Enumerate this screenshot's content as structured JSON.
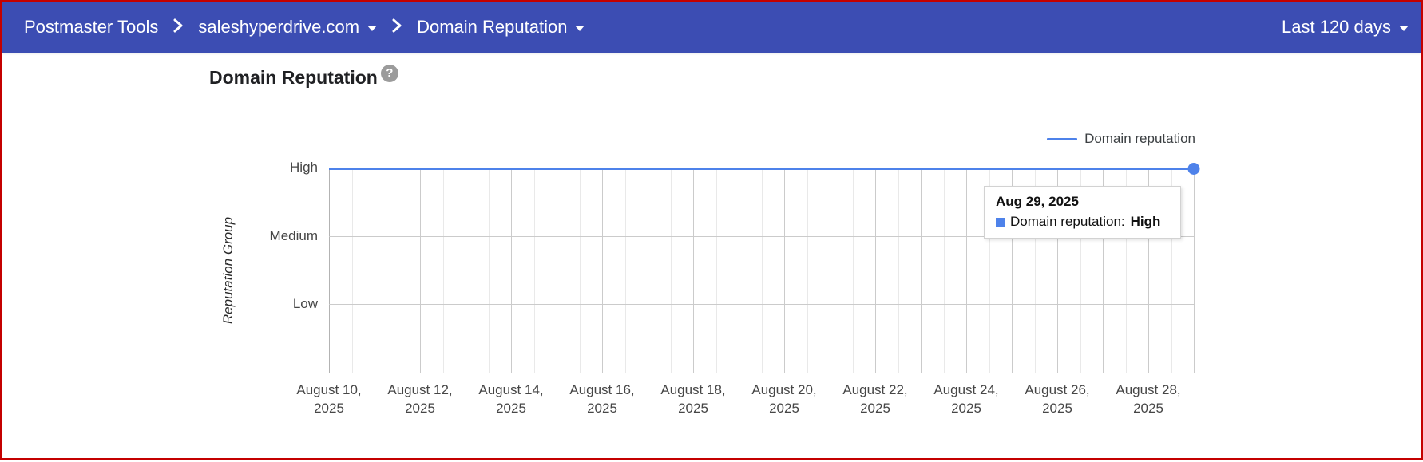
{
  "topbar": {
    "app_title": "Postmaster Tools",
    "domain": "saleshyperdrive.com",
    "page": "Domain Reputation",
    "date_range": "Last 120 days"
  },
  "main": {
    "heading": "Domain Reputation",
    "help_glyph": "?"
  },
  "legend": {
    "label": "Domain reputation"
  },
  "tooltip": {
    "date": "Aug 29, 2025",
    "series_label": "Domain reputation:",
    "value": "High"
  },
  "colors": {
    "topbar_bg": "#3c4db3",
    "annotation_border": "#c40000",
    "series_blue": "#4e82ea",
    "grid_major": "#cbcbcb",
    "grid_minor": "#e9e9e9",
    "y_axis_line": "#b3b3b3"
  },
  "chart_data": {
    "type": "line",
    "title": "Domain Reputation",
    "xlabel": "",
    "ylabel": "Reputation Group",
    "y_categories": [
      "High",
      "Medium",
      "Low"
    ],
    "x_tick_labels": [
      "August 10, 2025",
      "August 12, 2025",
      "August 14, 2025",
      "August 16, 2025",
      "August 18, 2025",
      "August 20, 2025",
      "August 22, 2025",
      "August 24, 2025",
      "August 26, 2025",
      "August 28, 2025"
    ],
    "x_range": [
      "2025-08-10",
      "2025-08-29"
    ],
    "grid": true,
    "legend_position": "top-right",
    "series": [
      {
        "name": "Domain reputation",
        "color": "#4e82ea",
        "points": [
          {
            "date": "2025-08-10",
            "value": "High"
          },
          {
            "date": "2025-08-11",
            "value": "High"
          },
          {
            "date": "2025-08-12",
            "value": "High"
          },
          {
            "date": "2025-08-13",
            "value": "High"
          },
          {
            "date": "2025-08-14",
            "value": "High"
          },
          {
            "date": "2025-08-15",
            "value": "High"
          },
          {
            "date": "2025-08-16",
            "value": "High"
          },
          {
            "date": "2025-08-17",
            "value": "High"
          },
          {
            "date": "2025-08-18",
            "value": "High"
          },
          {
            "date": "2025-08-19",
            "value": "High"
          },
          {
            "date": "2025-08-20",
            "value": "High"
          },
          {
            "date": "2025-08-21",
            "value": "High"
          },
          {
            "date": "2025-08-22",
            "value": "High"
          },
          {
            "date": "2025-08-23",
            "value": "High"
          },
          {
            "date": "2025-08-24",
            "value": "High"
          },
          {
            "date": "2025-08-25",
            "value": "High"
          },
          {
            "date": "2025-08-26",
            "value": "High"
          },
          {
            "date": "2025-08-27",
            "value": "High"
          },
          {
            "date": "2025-08-28",
            "value": "High"
          },
          {
            "date": "2025-08-29",
            "value": "High"
          }
        ]
      }
    ]
  }
}
